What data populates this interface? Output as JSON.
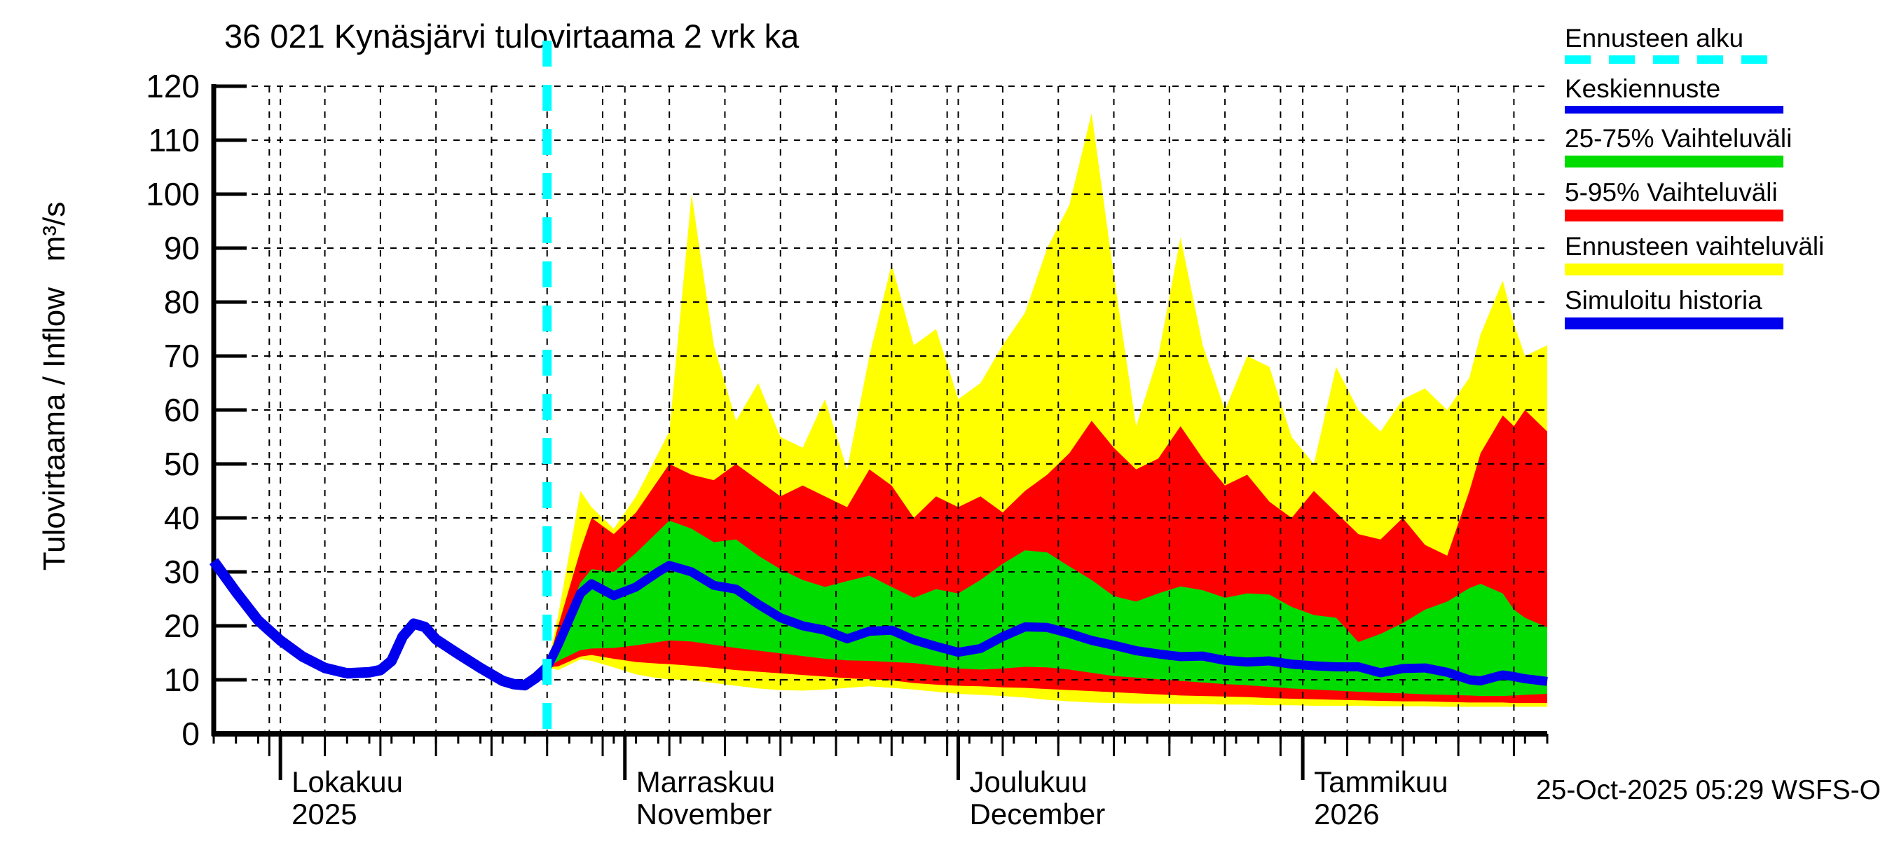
{
  "title": "36 021 Kynäsjärvi tulovirtaama 2 vrk ka",
  "y_axis": {
    "label": "Tulovirtaama / Inflow",
    "unit": "m³/s",
    "ticks": [
      0,
      10,
      20,
      30,
      40,
      50,
      60,
      70,
      80,
      90,
      100,
      110,
      120
    ]
  },
  "x_axis": {
    "months": [
      {
        "label": "Lokakuu",
        "sublabel": "2025",
        "day": 6
      },
      {
        "label": "Marraskuu",
        "sublabel": "November",
        "day": 37
      },
      {
        "label": "Joulukuu",
        "sublabel": "December",
        "day": 67
      },
      {
        "label": "Tammikuu",
        "sublabel": "2026",
        "day": 98
      }
    ]
  },
  "legend": [
    {
      "label": "Ennusteen alku",
      "color": "#00ffff",
      "thickness": 12,
      "dashed": true
    },
    {
      "label": "Keskiennuste",
      "color": "#0000ee",
      "thickness": 11,
      "dashed": false
    },
    {
      "label": "25-75% Vaihteluväli",
      "color": "#00dc00",
      "thickness": 17,
      "dashed": false
    },
    {
      "label": "5-95% Vaihteluväli",
      "color": "#ff0000",
      "thickness": 17,
      "dashed": false
    },
    {
      "label": "Ennusteen vaihteluväli",
      "color": "#ffff00",
      "thickness": 17,
      "dashed": false
    },
    {
      "label": "Simuloitu historia",
      "color": "#0000ee",
      "thickness": 17,
      "dashed": false
    }
  ],
  "footer": {
    "timestamp": "25-Oct-2025 05:29 WSFS-O"
  },
  "chart_data": {
    "type": "line",
    "title": "36 021 Kynäsjärvi tulovirtaama 2 vrk ka",
    "ylabel": "Tulovirtaama / Inflow m³/s",
    "ylim": [
      0,
      120
    ],
    "y_tick_step": 10,
    "x_unit": "days (day 0 at left plot edge, ~2-day averaged series)",
    "day_range": [
      0,
      120
    ],
    "forecast_start_day": 30,
    "month_start_days": [
      6,
      37,
      67,
      98
    ],
    "month_tick_days": [
      5,
      10,
      15,
      20,
      25,
      30,
      35,
      41,
      46,
      51,
      56,
      61,
      66,
      71,
      76,
      81,
      86,
      91,
      96,
      102,
      107,
      112,
      117
    ],
    "minor_tick_step": 2,
    "grid": true,
    "legend_position": "top-right",
    "colors": {
      "forecast_start": "#00ffff",
      "median": "#0000ee",
      "band_25_75": "#00dc00",
      "band_5_95": "#ff0000",
      "band_minmax": "#ffff00",
      "history": "#0000ee",
      "grid": "#000000",
      "axis": "#000000"
    },
    "series": {
      "history": {
        "name": "Simuloitu historia",
        "days": [
          0,
          2,
          4,
          6,
          8,
          10,
          12,
          14,
          15,
          16,
          17,
          18,
          19,
          20,
          22,
          24,
          25,
          26,
          27,
          28,
          29,
          30
        ],
        "values": [
          32,
          26.3,
          21,
          17.3,
          14.3,
          12.2,
          11.2,
          11.4,
          11.8,
          13.5,
          18,
          20.4,
          19.8,
          17.5,
          14.8,
          12.2,
          11,
          9.8,
          9.2,
          9,
          10.4,
          12.3
        ]
      },
      "forecast_days": [
        30,
        31,
        33,
        34,
        36,
        38,
        40,
        41,
        43,
        45,
        47,
        49,
        51,
        53,
        55,
        57,
        59,
        61,
        63,
        65,
        67,
        69,
        71,
        73,
        75,
        77,
        79,
        81,
        83,
        85,
        87,
        89,
        91,
        93,
        95,
        97,
        99,
        101,
        103,
        105,
        107,
        109,
        111,
        113,
        114,
        116,
        117,
        118,
        120
      ],
      "median": {
        "name": "Keskiennuste",
        "values": [
          12.3,
          16.5,
          26,
          27.8,
          25.6,
          27.2,
          30,
          31.2,
          30,
          27.5,
          26.8,
          24,
          21.5,
          20,
          19.2,
          17.6,
          19,
          19.2,
          17.4,
          16.2,
          15.1,
          15.8,
          18,
          19.8,
          19.7,
          18.6,
          17.3,
          16.4,
          15.4,
          14.8,
          14.3,
          14.4,
          13.6,
          13.3,
          13.5,
          12.9,
          12.6,
          12.4,
          12.4,
          11.3,
          12.1,
          12.2,
          11.4,
          10,
          9.8,
          10.9,
          10.6,
          10.2,
          9.7
        ]
      },
      "band_25_75": {
        "name": "25-75% Vaihteluväli",
        "upper": [
          12.3,
          18,
          28,
          30.5,
          30,
          33.5,
          37.5,
          39.5,
          38,
          35.5,
          36,
          33,
          30.5,
          28.5,
          27.2,
          28.3,
          29.3,
          27.2,
          25.2,
          26.8,
          26,
          28.5,
          31.5,
          34,
          33.6,
          31,
          28.5,
          25.5,
          24.5,
          26,
          27.3,
          26.6,
          25.2,
          26,
          25.8,
          23.5,
          22,
          21.5,
          17,
          18.5,
          20.5,
          23,
          24.5,
          27,
          27.8,
          26,
          23,
          21.5,
          19.7
        ],
        "lower": [
          12.3,
          13.5,
          15.5,
          15.8,
          15.9,
          16.4,
          17,
          17.3,
          17.1,
          16.5,
          15.9,
          15.4,
          14.9,
          14.4,
          13.9,
          13.6,
          13.5,
          13.3,
          13.1,
          12.6,
          12.1,
          11.9,
          12.1,
          12.4,
          12.3,
          11.9,
          11.3,
          10.7,
          10.4,
          10.1,
          9.8,
          9.5,
          9.2,
          9,
          8.7,
          8.4,
          8.2,
          8,
          7.8,
          7.6,
          7.5,
          7.3,
          7.2,
          7.1,
          7,
          7,
          7.1,
          7.2,
          7.4
        ]
      },
      "band_5_95": {
        "name": "5-95% Vaihteluväli",
        "upper": [
          12.3,
          20,
          34,
          40,
          37,
          41,
          47,
          50,
          48,
          47,
          50,
          47,
          44,
          46,
          44,
          42,
          49,
          46,
          40,
          44,
          42,
          44,
          41,
          45,
          48,
          52,
          58,
          53,
          49,
          51,
          57,
          51,
          46,
          48,
          43,
          40,
          45,
          41,
          37,
          36,
          40,
          35,
          33,
          45,
          52,
          59,
          57,
          60,
          56
        ],
        "lower": [
          12.3,
          12.5,
          14.3,
          14.6,
          13.9,
          13.3,
          13,
          12.9,
          12.6,
          12.2,
          11.8,
          11.5,
          11.2,
          10.9,
          10.6,
          10.3,
          10.1,
          9.9,
          9.4,
          9.1,
          8.9,
          8.8,
          8.6,
          8.5,
          8.3,
          8.1,
          7.9,
          7.7,
          7.5,
          7.3,
          7.1,
          7,
          6.9,
          6.8,
          6.6,
          6.5,
          6.4,
          6.3,
          6.2,
          6.1,
          6,
          6,
          5.9,
          5.8,
          5.8,
          5.8,
          5.7,
          5.7,
          5.7
        ]
      },
      "band_minmax": {
        "name": "Ennusteen vaihteluväli",
        "upper": [
          12.3,
          22,
          45,
          42,
          38,
          44,
          52,
          56,
          100,
          72,
          58,
          65,
          55,
          53,
          62,
          49,
          70,
          87,
          72,
          75,
          62,
          65,
          72,
          78,
          90,
          98,
          115,
          85,
          57,
          70,
          92,
          72,
          60,
          70,
          68,
          55,
          50,
          68,
          60,
          56,
          62,
          64,
          60,
          66,
          74,
          84,
          76,
          70,
          72
        ],
        "lower": [
          12.3,
          11.8,
          13.8,
          13.5,
          12.3,
          11,
          10.3,
          10.1,
          9.9,
          9.4,
          8.9,
          8.4,
          8.1,
          8,
          8.2,
          8.5,
          8.8,
          8.5,
          8.2,
          7.8,
          7.4,
          7.2,
          7,
          6.7,
          6.3,
          6,
          5.8,
          5.7,
          5.6,
          5.6,
          5.5,
          5.5,
          5.4,
          5.4,
          5.3,
          5.3,
          5.2,
          5.2,
          5.2,
          5.1,
          5.1,
          5.1,
          5,
          5,
          5,
          5,
          5,
          5,
          5
        ]
      }
    }
  }
}
